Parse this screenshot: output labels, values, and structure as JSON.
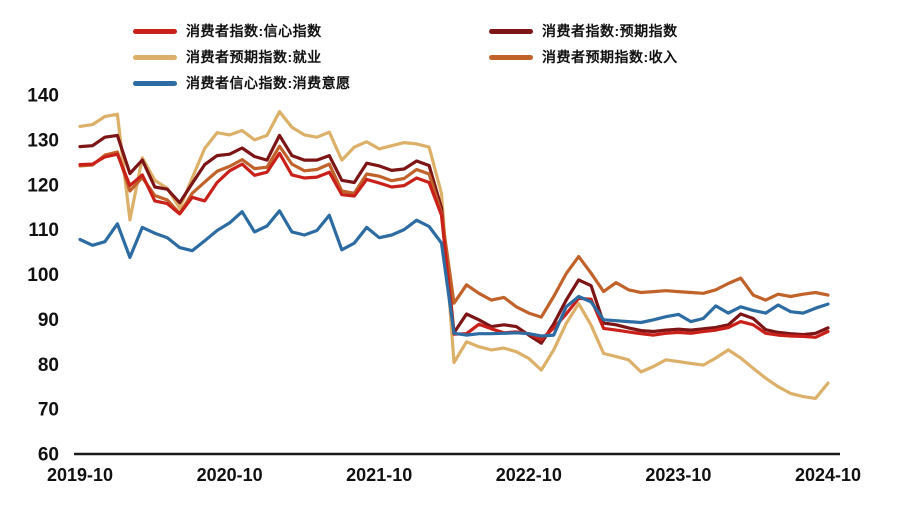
{
  "chart": {
    "background_color": "#ffffff",
    "axis_color": "#1a1a1a",
    "title": ""
  },
  "chart_data": {
    "type": "line",
    "title": "",
    "xlabel": "",
    "ylabel": "",
    "x_start": "2019-10",
    "x_end": "2024-10",
    "x_frequency": "monthly",
    "n_points": 61,
    "x_tick_labels": [
      "2019-10",
      "2020-10",
      "2021-10",
      "2022-10",
      "2023-10",
      "2024-10"
    ],
    "y_ticks": [
      60,
      70,
      80,
      90,
      100,
      110,
      120,
      130,
      140
    ],
    "ylim": [
      60,
      140
    ],
    "grid": false,
    "legend_position": "top",
    "series": [
      {
        "name": "消费者指数:信心指数",
        "color": "#c9211a",
        "values": [
          124.5,
          124.6,
          126.2,
          126.8,
          119.8,
          122.2,
          116.4,
          115.8,
          113.5,
          117.2,
          116.4,
          120.5,
          123.1,
          124.6,
          122.1,
          122.8,
          127.0,
          122.2,
          121.5,
          121.7,
          122.8,
          117.8,
          117.5,
          121.2,
          120.4,
          119.5,
          119.8,
          121.5,
          120.5,
          113.2,
          86.7,
          86.8,
          88.9,
          87.9,
          87.0,
          87.2,
          86.8,
          85.5,
          88.1,
          91.2,
          94.7,
          94.5,
          88.0,
          87.6,
          87.2,
          86.8,
          86.5,
          86.9,
          87.1,
          86.9,
          87.3,
          87.6,
          88.2,
          89.5,
          88.8,
          86.9,
          86.5,
          86.3,
          86.2,
          86.0,
          87.3
        ]
      },
      {
        "name": "消费者指数:预期指数",
        "color": "#7d1416",
        "values": [
          128.5,
          128.7,
          130.6,
          131.0,
          122.5,
          125.5,
          119.5,
          119.0,
          116.0,
          120.3,
          124.5,
          126.5,
          126.8,
          128.2,
          126.3,
          125.5,
          131.0,
          126.5,
          125.5,
          125.5,
          126.5,
          121.0,
          120.5,
          124.8,
          124.2,
          123.2,
          123.5,
          125.3,
          124.3,
          114.8,
          87.0,
          91.2,
          89.9,
          88.4,
          88.8,
          88.4,
          86.5,
          84.7,
          89.0,
          94.3,
          98.8,
          97.5,
          89.2,
          88.8,
          88.1,
          87.5,
          87.3,
          87.6,
          87.8,
          87.6,
          87.9,
          88.2,
          88.8,
          91.2,
          90.2,
          87.7,
          87.1,
          86.8,
          86.6,
          86.9,
          88.1
        ]
      },
      {
        "name": "消费者预期指数:就业",
        "color": "#ddb06a",
        "values": [
          133.0,
          133.4,
          135.2,
          135.7,
          112.2,
          126.0,
          121.0,
          119.2,
          114.8,
          121.5,
          128.1,
          131.6,
          131.1,
          132.1,
          130.0,
          131.0,
          136.3,
          132.8,
          131.1,
          130.6,
          131.7,
          125.5,
          128.4,
          129.6,
          128.0,
          128.7,
          129.4,
          129.1,
          128.4,
          118.0,
          80.4,
          85.0,
          83.9,
          83.2,
          83.6,
          82.8,
          81.3,
          78.7,
          83.2,
          89.1,
          93.5,
          88.7,
          82.4,
          81.7,
          81.0,
          78.3,
          79.5,
          81.0,
          80.6,
          80.2,
          79.8,
          81.4,
          83.2,
          81.4,
          79.1,
          76.9,
          75.0,
          73.5,
          72.8,
          72.4,
          75.8
        ]
      },
      {
        "name": "消费者预期指数:收入",
        "color": "#c2622b",
        "values": [
          124.2,
          124.4,
          126.6,
          127.3,
          118.6,
          121.6,
          117.6,
          116.6,
          113.6,
          118.1,
          120.6,
          123.0,
          124.1,
          125.6,
          123.6,
          123.9,
          128.6,
          124.6,
          123.1,
          123.4,
          124.6,
          118.6,
          118.1,
          122.4,
          121.9,
          120.9,
          121.4,
          123.4,
          122.4,
          113.6,
          93.6,
          97.7,
          95.8,
          94.3,
          94.9,
          92.8,
          91.4,
          90.5,
          95.1,
          100.2,
          104.0,
          100.3,
          96.2,
          98.2,
          96.6,
          96.0,
          96.2,
          96.4,
          96.2,
          96.0,
          95.8,
          96.6,
          98.0,
          99.2,
          95.4,
          94.3,
          95.6,
          95.1,
          95.6,
          96.0,
          95.4
        ]
      },
      {
        "name": "消费者信心指数:消费意愿",
        "color": "#2d6ca2",
        "values": [
          107.8,
          106.5,
          107.3,
          111.3,
          103.8,
          110.5,
          109.2,
          108.2,
          106.0,
          105.3,
          107.5,
          109.8,
          111.5,
          114.0,
          109.5,
          110.8,
          114.2,
          109.5,
          108.8,
          109.8,
          113.2,
          105.5,
          107.0,
          110.5,
          108.2,
          108.8,
          110.0,
          112.1,
          110.7,
          107.0,
          86.9,
          86.5,
          86.8,
          86.8,
          86.9,
          87.0,
          86.8,
          86.3,
          86.5,
          92.8,
          95.1,
          93.9,
          89.9,
          89.7,
          89.5,
          89.3,
          89.9,
          90.6,
          91.1,
          89.5,
          90.2,
          93.0,
          91.4,
          92.8,
          92.0,
          91.4,
          93.2,
          91.7,
          91.4,
          92.5,
          93.4
        ]
      }
    ]
  }
}
